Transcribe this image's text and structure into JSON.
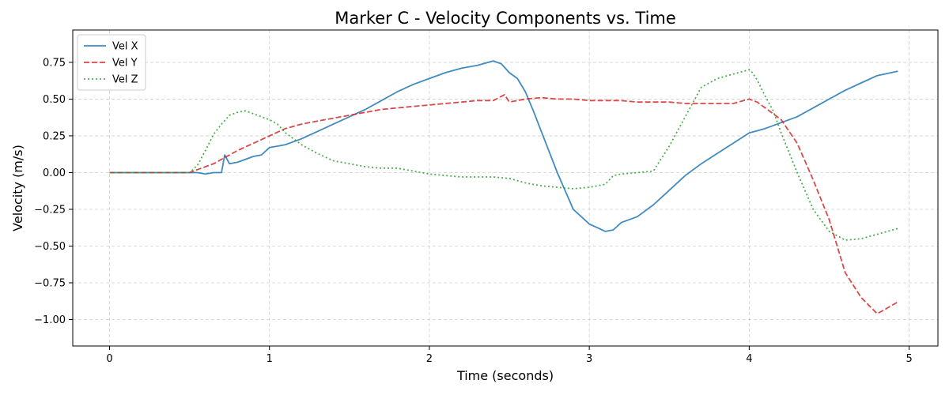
{
  "chart_data": {
    "type": "line",
    "title": "Marker C - Velocity Components vs. Time",
    "xlabel": "Time (seconds)",
    "ylabel": "Velocity (m/s)",
    "xlim": [
      -0.23,
      5.18
    ],
    "ylim": [
      -1.18,
      0.97
    ],
    "xticks": [
      0,
      1,
      2,
      3,
      4,
      5
    ],
    "yticks": [
      -1.0,
      -0.75,
      -0.5,
      -0.25,
      0.0,
      0.25,
      0.5,
      0.75
    ],
    "grid": true,
    "legend_position": "top-left",
    "series": [
      {
        "name": "Vel X",
        "color": "#1f77b4",
        "dash": "solid",
        "x": [
          0.0,
          0.1,
          0.2,
          0.3,
          0.4,
          0.5,
          0.55,
          0.6,
          0.65,
          0.7,
          0.72,
          0.75,
          0.8,
          0.9,
          0.95,
          1.0,
          1.05,
          1.1,
          1.2,
          1.3,
          1.4,
          1.5,
          1.6,
          1.7,
          1.8,
          1.9,
          2.0,
          2.1,
          2.2,
          2.3,
          2.4,
          2.45,
          2.5,
          2.55,
          2.6,
          2.65,
          2.7,
          2.8,
          2.9,
          3.0,
          3.1,
          3.15,
          3.2,
          3.3,
          3.4,
          3.5,
          3.6,
          3.7,
          3.8,
          3.9,
          4.0,
          4.1,
          4.2,
          4.3,
          4.4,
          4.5,
          4.6,
          4.7,
          4.8,
          4.93
        ],
        "y": [
          0.0,
          0.0,
          0.0,
          0.0,
          0.0,
          0.0,
          0.0,
          -0.01,
          0.0,
          0.0,
          0.12,
          0.06,
          0.07,
          0.11,
          0.12,
          0.17,
          0.18,
          0.19,
          0.23,
          0.28,
          0.33,
          0.38,
          0.43,
          0.49,
          0.55,
          0.6,
          0.64,
          0.68,
          0.71,
          0.73,
          0.76,
          0.74,
          0.68,
          0.64,
          0.55,
          0.42,
          0.28,
          0.0,
          -0.25,
          -0.35,
          -0.4,
          -0.39,
          -0.34,
          -0.3,
          -0.22,
          -0.12,
          -0.02,
          0.06,
          0.13,
          0.2,
          0.27,
          0.3,
          0.34,
          0.38,
          0.44,
          0.5,
          0.56,
          0.61,
          0.66,
          0.69
        ]
      },
      {
        "name": "Vel Y",
        "color": "#d62728",
        "dash": "dashed",
        "x": [
          0.0,
          0.1,
          0.2,
          0.3,
          0.4,
          0.5,
          0.55,
          0.6,
          0.65,
          0.7,
          0.8,
          0.9,
          1.0,
          1.1,
          1.2,
          1.3,
          1.4,
          1.5,
          1.6,
          1.7,
          1.8,
          1.9,
          2.0,
          2.1,
          2.2,
          2.3,
          2.4,
          2.47,
          2.5,
          2.6,
          2.7,
          2.8,
          2.9,
          3.0,
          3.1,
          3.2,
          3.3,
          3.4,
          3.5,
          3.6,
          3.7,
          3.8,
          3.9,
          4.0,
          4.05,
          4.1,
          4.2,
          4.3,
          4.4,
          4.5,
          4.6,
          4.7,
          4.8,
          4.85,
          4.93
        ],
        "y": [
          0.0,
          0.0,
          0.0,
          0.0,
          0.0,
          0.0,
          0.02,
          0.04,
          0.06,
          0.09,
          0.15,
          0.2,
          0.25,
          0.3,
          0.33,
          0.35,
          0.37,
          0.39,
          0.41,
          0.43,
          0.44,
          0.45,
          0.46,
          0.47,
          0.48,
          0.49,
          0.49,
          0.53,
          0.48,
          0.5,
          0.51,
          0.5,
          0.5,
          0.49,
          0.49,
          0.49,
          0.48,
          0.48,
          0.48,
          0.47,
          0.47,
          0.47,
          0.47,
          0.5,
          0.48,
          0.44,
          0.36,
          0.2,
          -0.05,
          -0.32,
          -0.68,
          -0.85,
          -0.96,
          -0.93,
          -0.88
        ]
      },
      {
        "name": "Vel Z",
        "color": "#2ca02c",
        "dash": "dotted",
        "x": [
          0.0,
          0.1,
          0.2,
          0.3,
          0.4,
          0.5,
          0.55,
          0.6,
          0.65,
          0.7,
          0.75,
          0.8,
          0.85,
          0.9,
          0.95,
          1.0,
          1.05,
          1.1,
          1.2,
          1.3,
          1.4,
          1.5,
          1.6,
          1.7,
          1.8,
          1.9,
          2.0,
          2.1,
          2.2,
          2.3,
          2.4,
          2.5,
          2.6,
          2.7,
          2.8,
          2.9,
          3.0,
          3.1,
          3.15,
          3.2,
          3.3,
          3.4,
          3.5,
          3.6,
          3.7,
          3.8,
          3.9,
          4.0,
          4.02,
          4.05,
          4.1,
          4.15,
          4.2,
          4.3,
          4.4,
          4.5,
          4.6,
          4.7,
          4.8,
          4.93
        ],
        "y": [
          0.0,
          0.0,
          0.0,
          0.0,
          0.0,
          0.0,
          0.05,
          0.15,
          0.26,
          0.33,
          0.39,
          0.41,
          0.42,
          0.4,
          0.38,
          0.36,
          0.33,
          0.27,
          0.19,
          0.13,
          0.08,
          0.06,
          0.04,
          0.03,
          0.03,
          0.01,
          -0.01,
          -0.02,
          -0.03,
          -0.03,
          -0.03,
          -0.04,
          -0.07,
          -0.09,
          -0.1,
          -0.11,
          -0.1,
          -0.08,
          -0.02,
          -0.01,
          0.0,
          0.01,
          0.18,
          0.38,
          0.58,
          0.64,
          0.67,
          0.7,
          0.68,
          0.63,
          0.52,
          0.42,
          0.27,
          0.0,
          -0.25,
          -0.4,
          -0.46,
          -0.45,
          -0.42,
          -0.38
        ]
      }
    ]
  }
}
